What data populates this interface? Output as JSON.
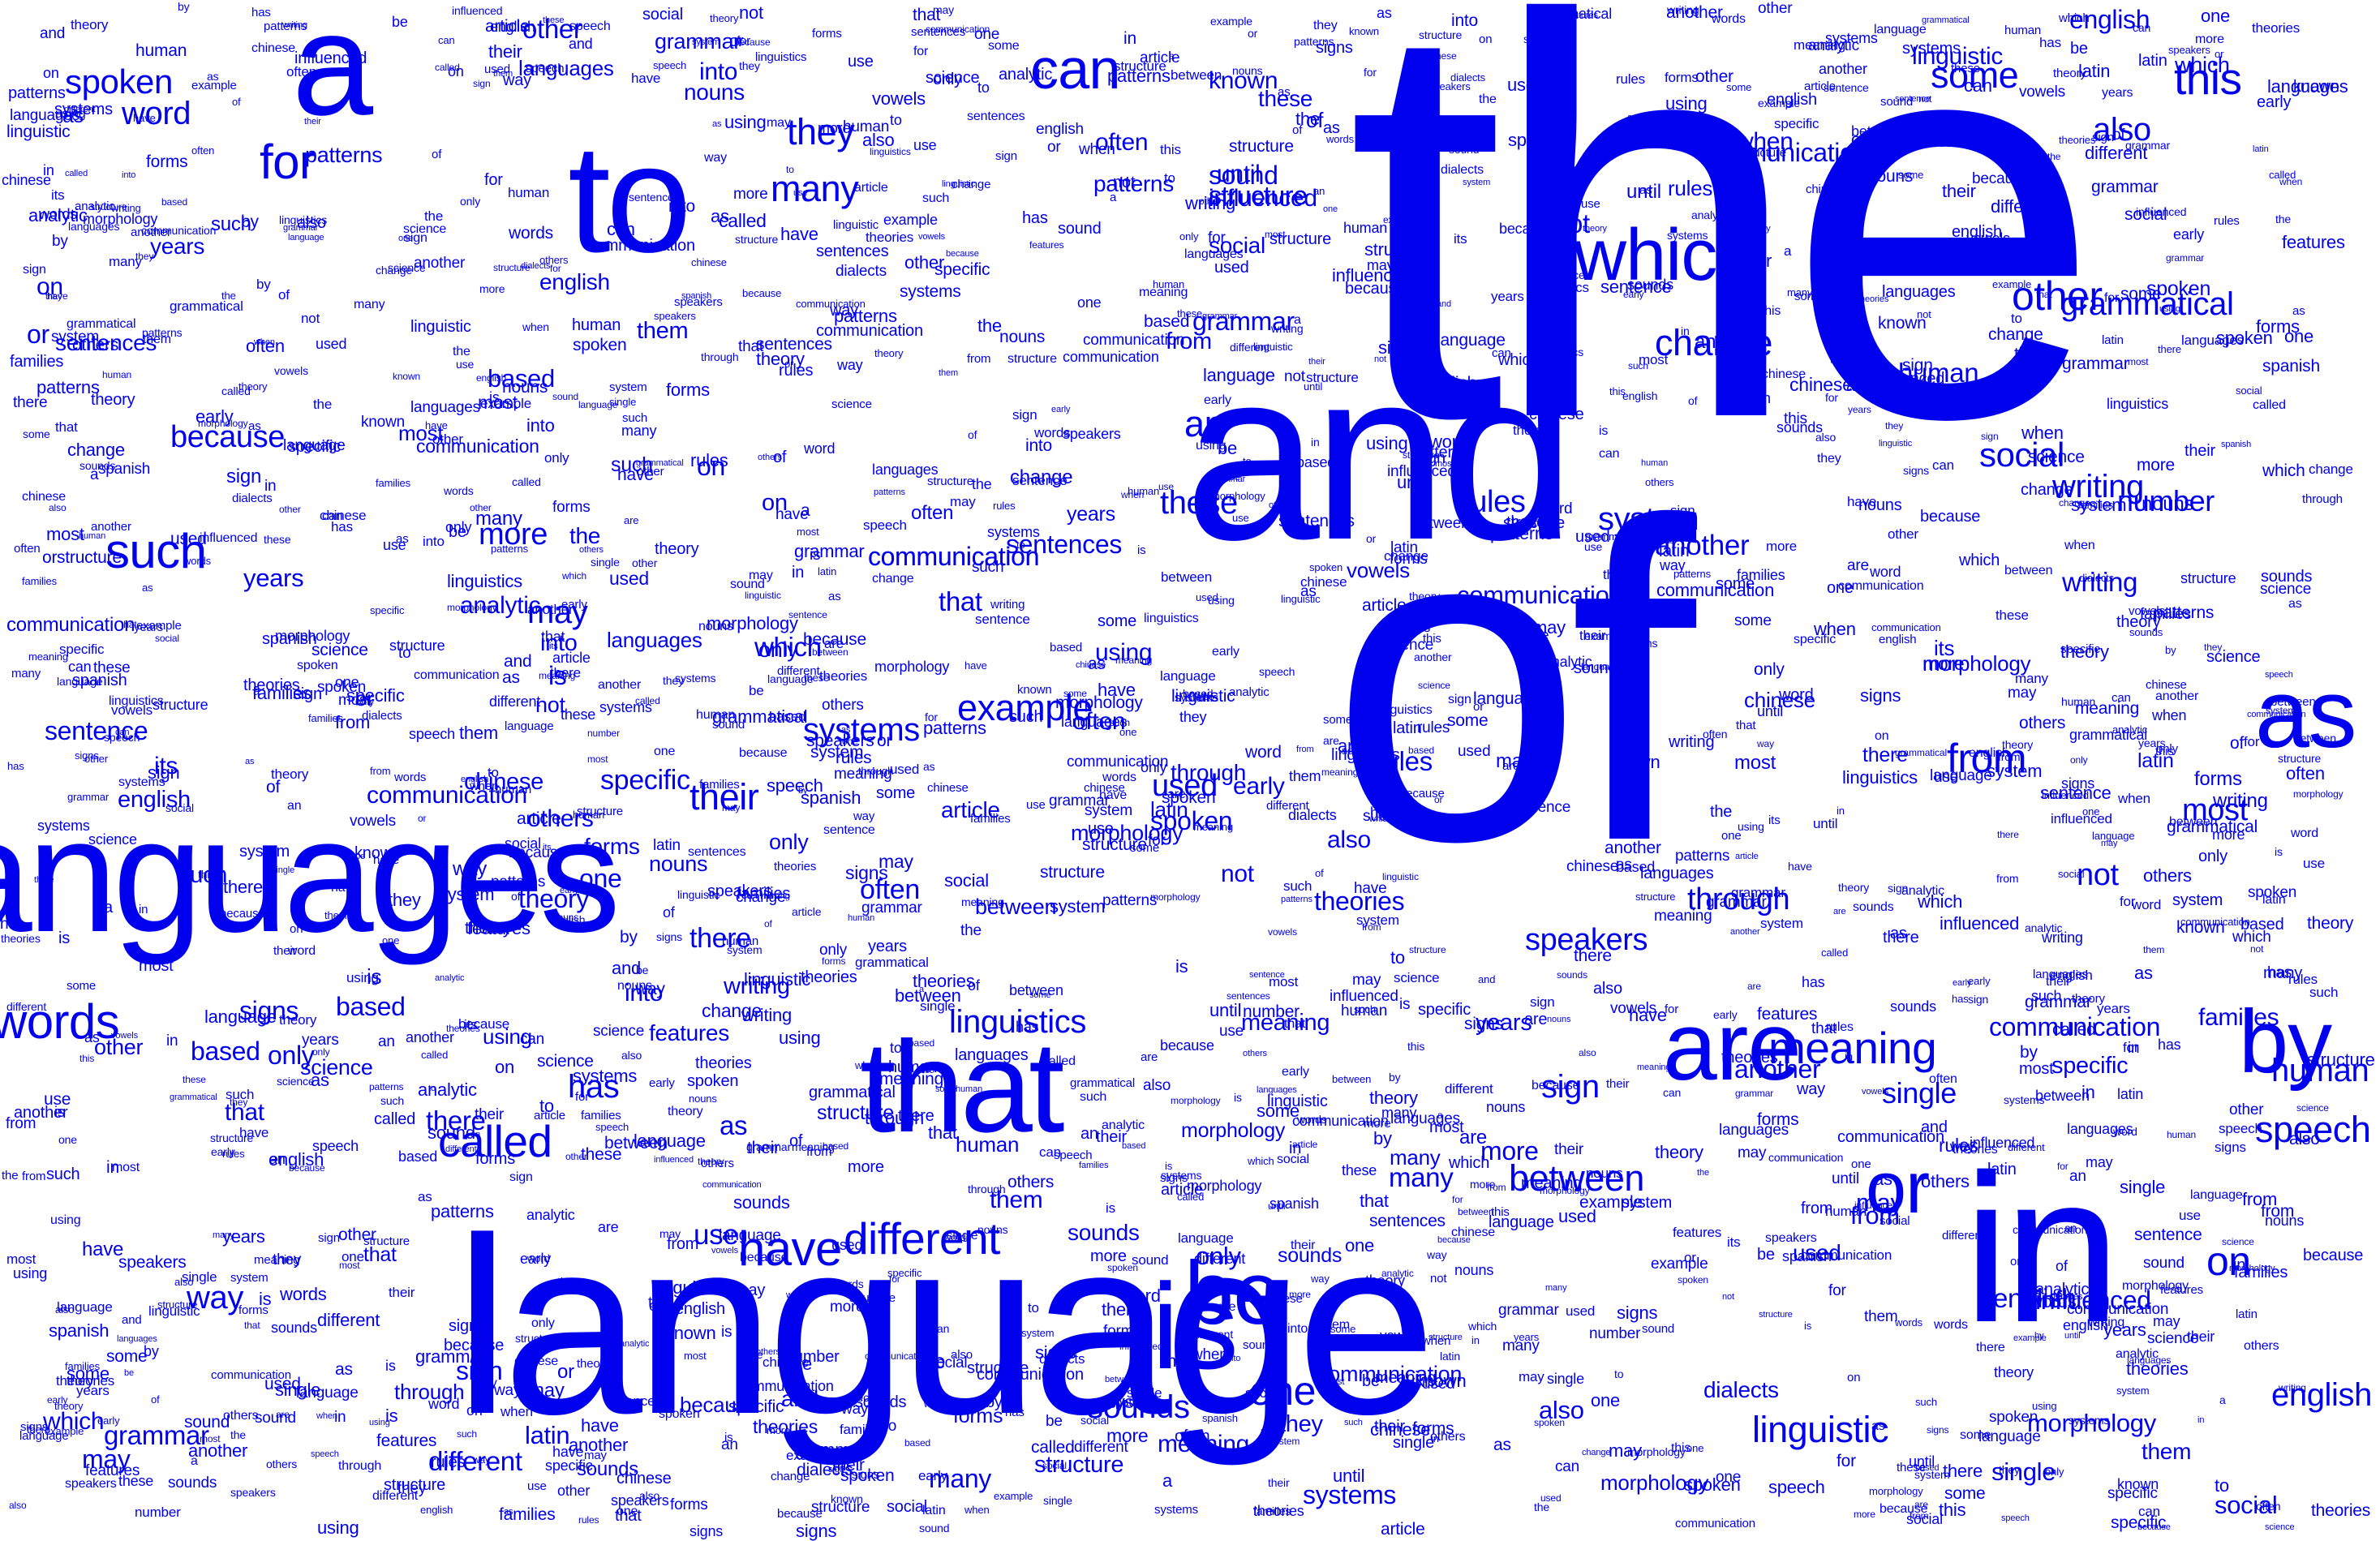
{
  "colors": {
    "background": "#ffffff",
    "word": "#0000ee"
  },
  "words": [
    "the",
    "of",
    "language",
    "and",
    "languages",
    "in",
    "to",
    "a",
    "that",
    "are",
    "as",
    "or",
    "by",
    "is",
    "be",
    "which",
    "other",
    "can",
    "this",
    "some",
    "many",
    "they",
    "for",
    "spoken",
    "word",
    "such",
    "also",
    "when",
    "as",
    "from",
    "speech",
    "english",
    "on",
    "meaning",
    "linguistic",
    "between",
    "have",
    "different",
    "them",
    "their",
    "called",
    "words",
    "example",
    "human",
    "social",
    "writing",
    "grammar",
    "sound",
    "structure",
    "system",
    "systems",
    "communication",
    "linguistics",
    "used",
    "because",
    "more",
    "may",
    "its",
    "sentence",
    "using",
    "specific",
    "others",
    "often",
    "there",
    "through",
    "speakers",
    "not",
    "most",
    "an",
    "these",
    "one",
    "has",
    "way",
    "based",
    "only",
    "known",
    "signs",
    "number",
    "sign",
    "single",
    "sentences",
    "theories",
    "until",
    "influenced",
    "into",
    "structure",
    "use",
    "forms",
    "features",
    "change",
    "another",
    "rules",
    "grammatical",
    "sounds",
    "patterns",
    "years",
    "dialects",
    "spanish",
    "article",
    "analytic",
    "vowels",
    "families",
    "early",
    "chinese",
    "latin",
    "morphology",
    "communication",
    "theory",
    "science",
    "nouns"
  ]
}
